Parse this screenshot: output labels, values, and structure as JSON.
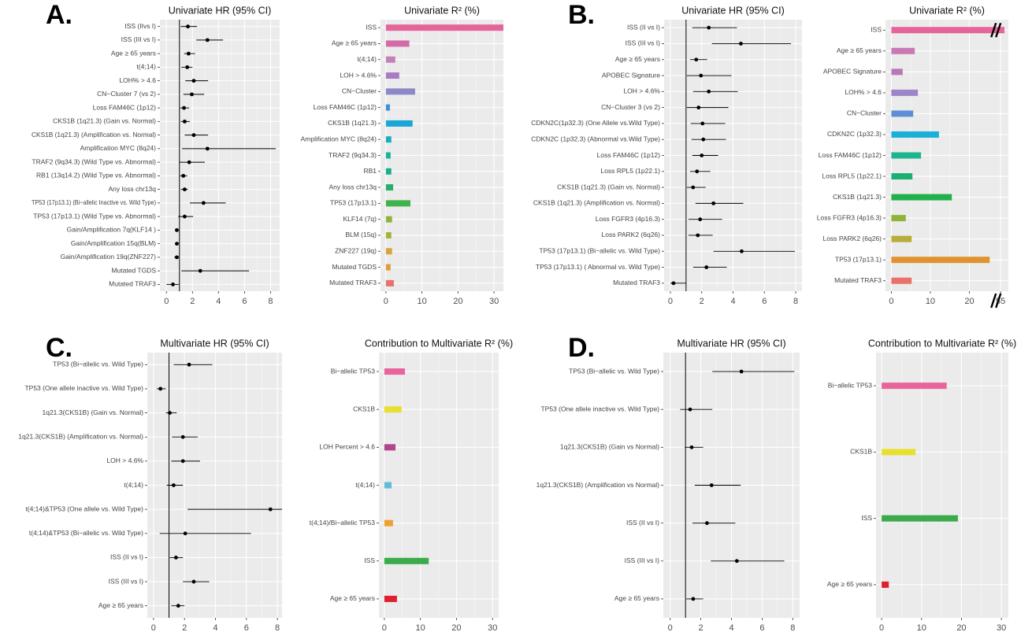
{
  "chart_data": [
    {
      "type": "forest",
      "panel_label": "A.",
      "title": "Univariate HR (95% CI)",
      "categories": [
        "ISS (IIvs I)",
        "ISS (III vs I)",
        "Age ≥ 65 years",
        "t(4;14)",
        "LOH% > 4.6",
        "CN−Cluster 7 (vs 2)",
        "Loss FAM46C (1p12)",
        "CKS1B (1q21.3) (Gain vs. Normal)",
        "CKS1B (1q21.3) (Amplification vs. Normal)",
        "Amplification MYC (8q24)",
        "TRAF2 (9q34.3) (Wild Type vs. Abnormal)",
        "RB1 (13q14.2) (Wild Type vs. Abnormal)",
        "Any loss chr13q",
        "TP53 (17p13.1) (Bi−allelic Inactive vs. Wild Type)",
        "TP53 (17p13.1) (Wild Type vs. Abnormal)",
        "Gain/Amplification 7q(KLF14 )",
        "Gain/Amplification 15q(BLM)",
        "Gain/Amplification 19q(ZNF227)",
        "Mutated TGDS",
        "Mutated TRAF3"
      ],
      "values": [
        1.65,
        3.15,
        1.7,
        1.6,
        2.1,
        1.95,
        1.35,
        1.4,
        2.1,
        3.15,
        1.75,
        1.3,
        1.4,
        2.85,
        1.4,
        0.8,
        0.8,
        0.8,
        2.6,
        0.5
      ],
      "lower": [
        1.1,
        2.3,
        1.35,
        1.15,
        1.45,
        1.3,
        1.05,
        1.1,
        1.4,
        1.2,
        1.0,
        1.05,
        1.1,
        1.8,
        0.9,
        0.65,
        0.65,
        0.6,
        1.15,
        0.0
      ],
      "upper": [
        2.35,
        4.35,
        2.2,
        2.0,
        3.2,
        2.9,
        1.75,
        1.8,
        3.2,
        8.4,
        2.95,
        1.6,
        1.65,
        4.55,
        2.05,
        0.95,
        0.95,
        0.95,
        6.35,
        0.95
      ],
      "ref_line": 1,
      "xlim": [
        -0.5,
        8.7
      ],
      "xticks": [
        0,
        2,
        4,
        6,
        8
      ],
      "grid": true
    },
    {
      "type": "bar",
      "title": "Univariate R² (%)",
      "categories": [
        "ISS",
        "Age ≥ 65 years",
        "t(4;14)",
        "LOH > 4.6%",
        "CN−Cluster",
        "Loss FAM46C (1p12)",
        "CKS1B (1q21.3)",
        "Amplification MYC (8q24)",
        "TRAF2 (9q34.3)",
        "RB1",
        "Any loss chr13q",
        "TP53 (17p13.1)",
        "KLF14 (7q)",
        "BLM (15q)",
        "ZNF227 (19q)",
        "Mutated TGDS",
        "Mutated TRAF3"
      ],
      "values": [
        32.6,
        6.5,
        2.6,
        3.7,
        8.1,
        1.1,
        7.4,
        1.5,
        1.3,
        1.5,
        2.0,
        6.8,
        1.7,
        1.5,
        1.7,
        1.3,
        2.2
      ],
      "colors": [
        "#E5649A",
        "#D46BA8",
        "#C67FB8",
        "#A77CC0",
        "#8E88C8",
        "#3D8FD8",
        "#1AA6D8",
        "#17AEC0",
        "#18B39F",
        "#17AF8A",
        "#22B06A",
        "#3FB34B",
        "#8DB53A",
        "#A8B13A",
        "#D7A53A",
        "#E39A3A",
        "#E9716A"
      ],
      "xlim": [
        -1.5,
        32.6
      ],
      "xticks": [
        0,
        10,
        20,
        30
      ],
      "grid": true
    },
    {
      "type": "forest",
      "panel_label": "B.",
      "title": "Univariate HR (95% CI)",
      "categories": [
        "ISS (II vs I)",
        "ISS (III vs I)",
        "Age ≥ 65 years",
        "APOBEC Signature",
        "LOH > 4.6%",
        "CN−Cluster 3 (vs 2)",
        "CDKN2C(1p32.3) (One Allele vs.Wild Type)",
        "CDKN2C (1p32.3) (Abnormal vs.Wild Type)",
        "Loss FAM46C (1p12)",
        "Loss RPL5 (1p22.1)",
        "CKS1B (1q21.3) (Gain vs. Normal)",
        "CKS1B (1q21.3) (Amplification vs. Normal)",
        "Loss FGFR3 (4p16.3)",
        "Loss PARK2 (6q26)",
        "TP53 (17p13.1) (Bi−allelic vs. Wild Type)",
        "TP53 (17p13.1) ( Abnormal vs. Wild Type)",
        "Mutated TRAF3"
      ],
      "values": [
        2.45,
        4.5,
        1.65,
        1.95,
        2.45,
        1.8,
        2.05,
        2.1,
        2.0,
        1.7,
        1.45,
        2.75,
        1.9,
        1.75,
        4.55,
        2.3,
        0.2
      ],
      "lower": [
        1.4,
        2.65,
        1.25,
        1.05,
        1.45,
        1.05,
        1.3,
        1.35,
        1.4,
        1.25,
        1.05,
        1.6,
        1.15,
        1.15,
        2.75,
        1.45,
        0.0
      ],
      "upper": [
        4.25,
        7.7,
        2.35,
        3.9,
        4.3,
        3.7,
        3.5,
        3.55,
        3.05,
        2.55,
        2.25,
        4.65,
        3.3,
        2.7,
        7.95,
        3.6,
        1.0
      ],
      "ref_line": 1,
      "xlim": [
        -0.4,
        8.4
      ],
      "xticks": [
        0,
        2,
        4,
        6,
        8
      ],
      "grid": true
    },
    {
      "type": "bar",
      "title": "Univariate R² (%)",
      "categories": [
        "ISS",
        "Age ≥ 65 years",
        "APOBEC Signature",
        "LOH% > 4.6",
        "CN−Cluster",
        "CDKN2C (1p32.3)",
        "Loss FAM46C (1p12)",
        "Loss RPL5 (1p22.1)",
        "CKS1B (1q21.3)",
        "Loss FGFR3 (4p16.3)",
        "Loss PARK2 (6q26)",
        "TP53 (17p13.1)",
        "Mutated TRAF3"
      ],
      "values": [
        56,
        6.0,
        2.9,
        6.8,
        5.6,
        12.2,
        7.6,
        5.4,
        15.5,
        3.7,
        5.2,
        25.2,
        5.2
      ],
      "colors": [
        "#E5649A",
        "#C979B3",
        "#B679B8",
        "#9A86C8",
        "#5C8FD8",
        "#1AB0D8",
        "#1CB58F",
        "#1CB070",
        "#23B04A",
        "#8FB43A",
        "#B8AD3A",
        "#E0922E",
        "#E9716A"
      ],
      "xlim": [
        -1.5,
        57
      ],
      "axis_break": [
        26,
        53
      ],
      "xticks": [
        0,
        10,
        20,
        55
      ],
      "grid": true
    },
    {
      "type": "forest",
      "panel_label": "C.",
      "title": "Multivariate HR (95% CI)",
      "categories": [
        "TP53 (Bi−allelic vs. Wild Type)",
        "TP53 (One allele inactive vs. Wild Type)",
        "1q21.3(CKS1B) (Gain vs. Normal)",
        "1q21.3(CKS1B) (Amplification vs. Normal)",
        "LOH > 4.6%",
        "t(4;14)",
        "t(4;14)&TP53 (One allele vs. Wild Type)",
        "t(4;14)&TP53 (Bi−allelic vs. Wild Type)",
        "ISS (II vs I)",
        "ISS (III vs I)",
        "Age ≥ 65 years"
      ],
      "values": [
        2.3,
        0.45,
        1.05,
        1.9,
        1.9,
        1.3,
        7.55,
        2.05,
        1.45,
        2.6,
        1.6
      ],
      "lower": [
        1.3,
        0.2,
        0.8,
        1.2,
        1.15,
        0.85,
        2.2,
        0.4,
        1.05,
        1.9,
        1.15
      ],
      "upper": [
        3.8,
        0.8,
        1.5,
        2.85,
        3.0,
        1.9,
        8.3,
        6.3,
        1.9,
        3.6,
        2.0
      ],
      "ref_line": 1,
      "xlim": [
        -0.4,
        8.3
      ],
      "xticks": [
        0,
        2,
        4,
        6,
        8
      ],
      "grid": true
    },
    {
      "type": "bar",
      "title": "Contribution to Multivariate R² (%)",
      "categories": [
        "Bi−allelic TP53",
        "CKS1B",
        "LOH Percent > 4.6",
        "t(4;14)",
        "t(4;14)/Bi−allelic TP53",
        "ISS",
        "Age ≥ 65 years"
      ],
      "values": [
        5.7,
        4.8,
        3.1,
        2.0,
        2.4,
        12.3,
        3.5
      ],
      "colors": [
        "#E8649A",
        "#E8E030",
        "#B0468C",
        "#62BCD8",
        "#F0A030",
        "#3BAA4A",
        "#E02030"
      ],
      "xlim": [
        -1.5,
        31.7
      ],
      "xticks": [
        0,
        10,
        20,
        30
      ],
      "grid": true
    },
    {
      "type": "forest",
      "panel_label": "D.",
      "title": "Multivariate HR (95% CI)",
      "categories": [
        "TP53 (Bi−allelic vs. Wild Type)",
        "TP53 (One allele inactive vs. Wild Type)",
        "1q21.3(CKS1B) (Gain vs Normal)",
        "1q21.3(CKS1B) (Amplification vs Normal)",
        "ISS (II vs I)",
        "ISS (III vs I)",
        "Age ≥ 65 years"
      ],
      "values": [
        4.65,
        1.3,
        1.4,
        2.7,
        2.4,
        4.35,
        1.5
      ],
      "lower": [
        2.75,
        0.65,
        0.95,
        1.6,
        1.45,
        2.65,
        1.05
      ],
      "upper": [
        8.1,
        2.75,
        2.15,
        4.6,
        4.25,
        7.45,
        2.15
      ],
      "ref_line": 1,
      "xlim": [
        -0.45,
        8.45
      ],
      "xticks": [
        0,
        2,
        4,
        6,
        8
      ],
      "grid": true
    },
    {
      "type": "bar",
      "title": "Contribution to Multivariate R² (%)",
      "categories": [
        "Bi−allelic TP53",
        "CKS1B",
        "ISS",
        "Age ≥ 65 years"
      ],
      "values": [
        16.3,
        8.5,
        19.1,
        1.8
      ],
      "colors": [
        "#E8649A",
        "#E8E030",
        "#3BAA4A",
        "#E02030"
      ],
      "xlim": [
        -1.4,
        31.75
      ],
      "xticks": [
        0,
        10,
        20,
        30
      ],
      "grid": true
    }
  ]
}
